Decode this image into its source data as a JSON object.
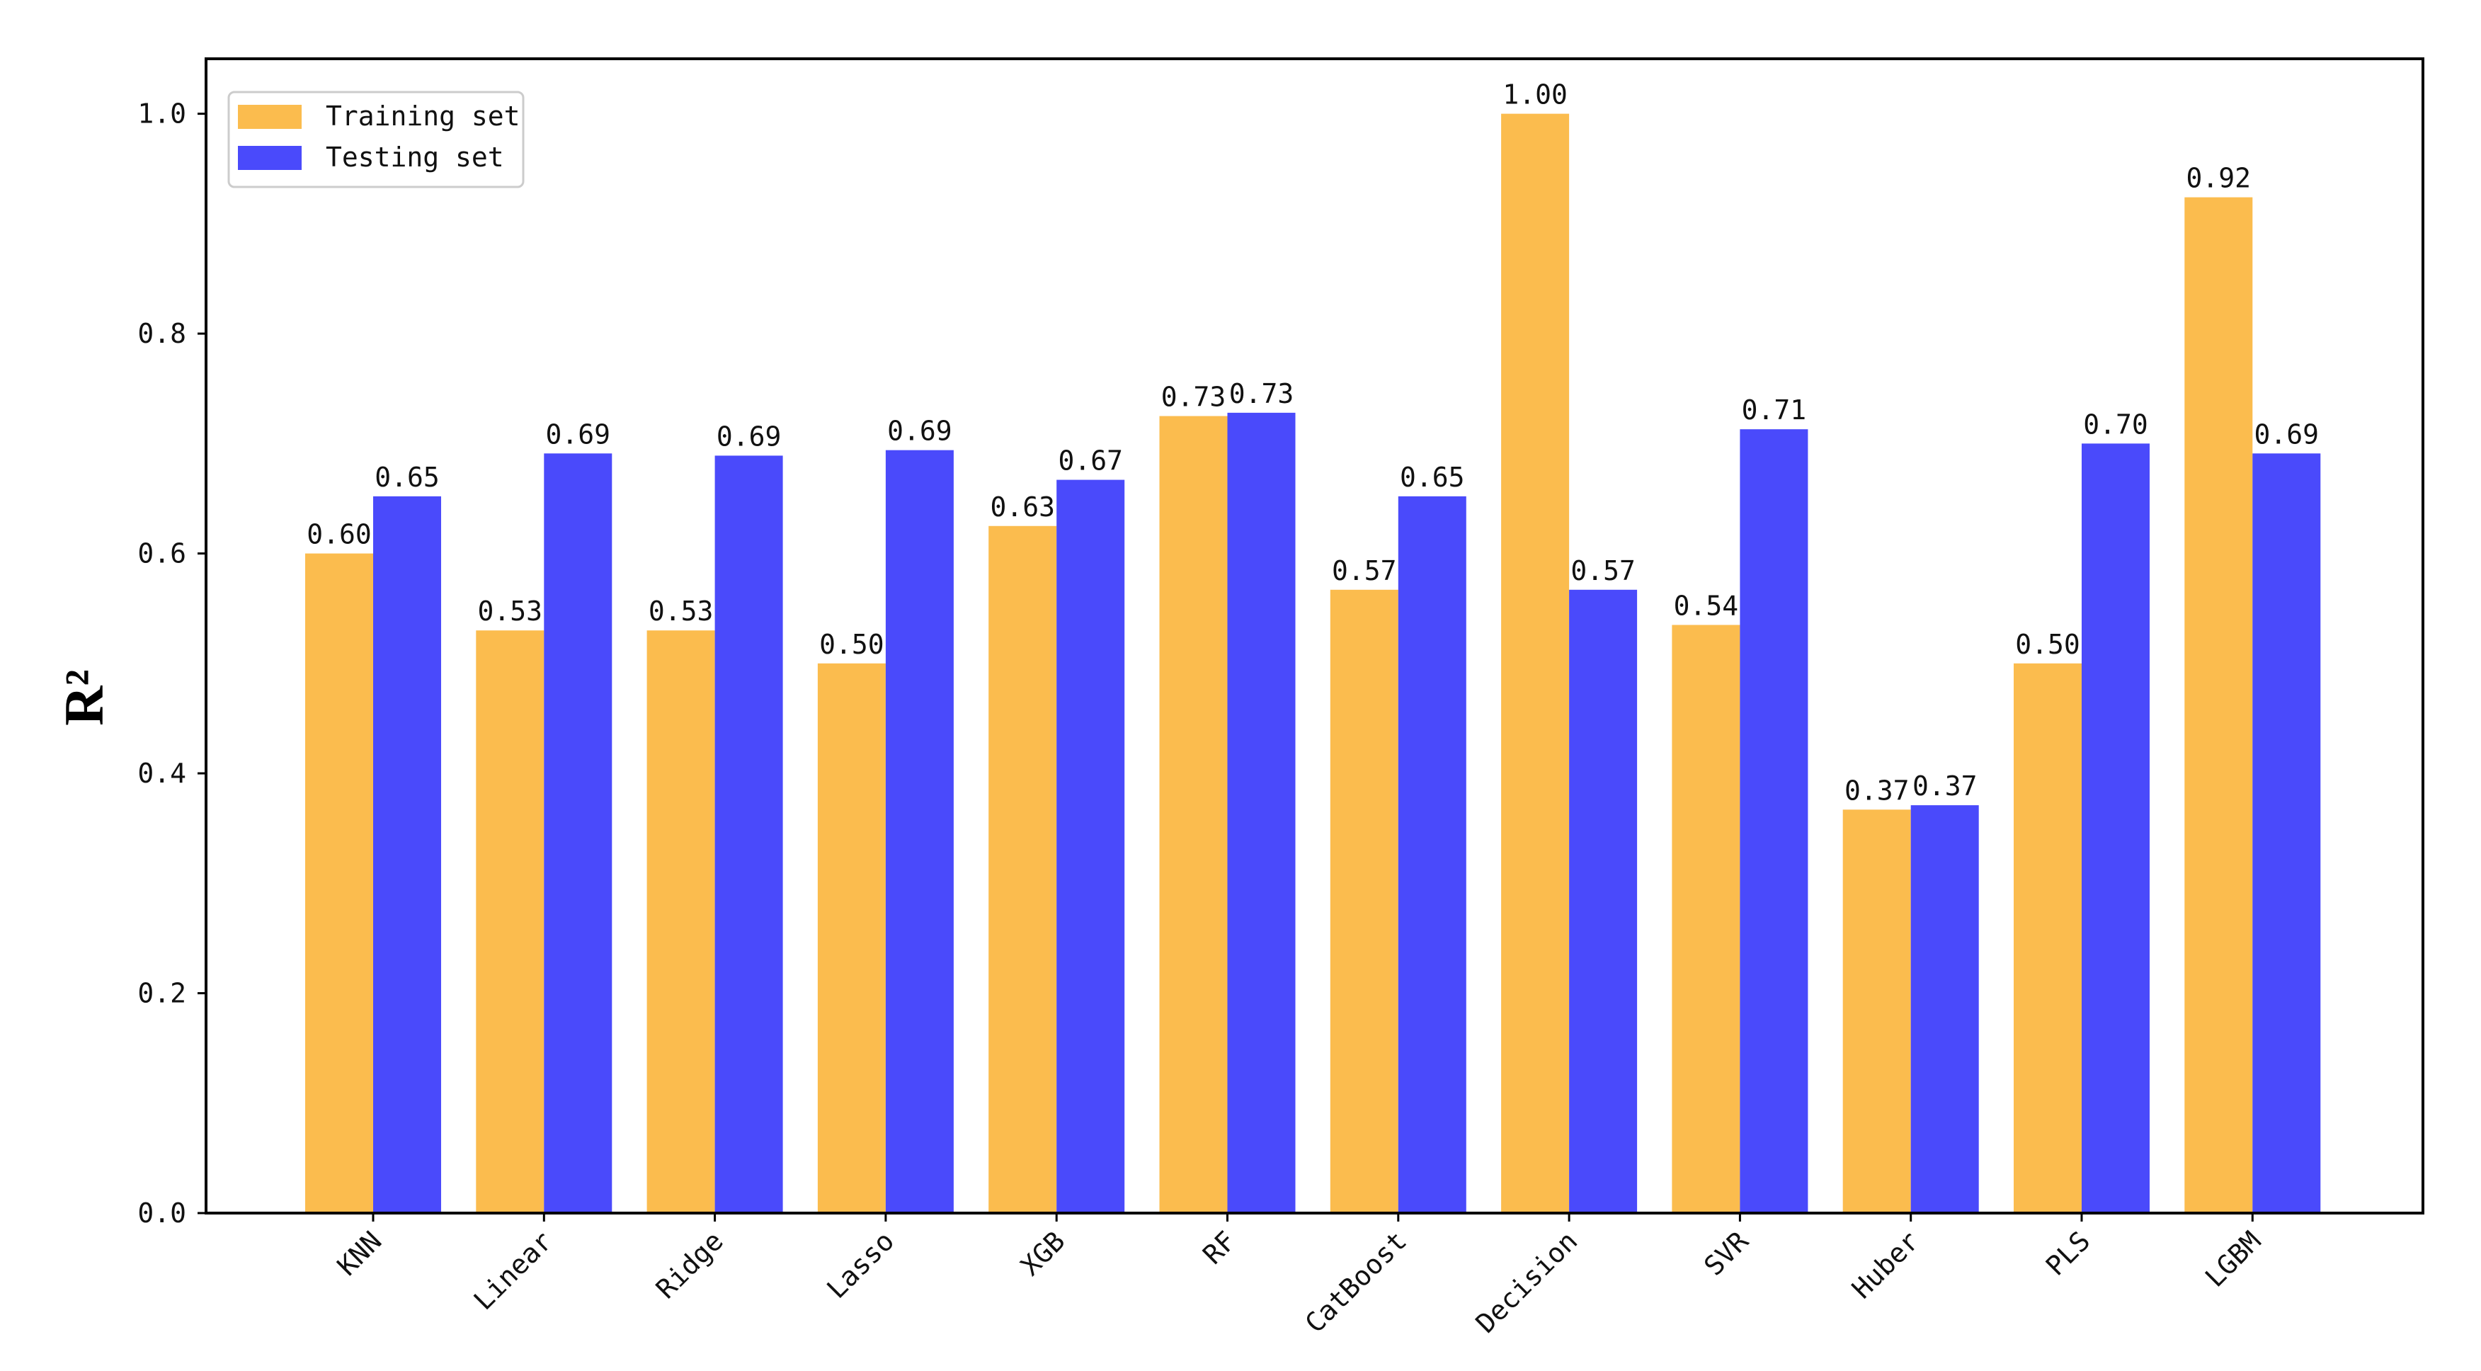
{
  "chart_data": {
    "type": "bar",
    "title": "",
    "xlabel": "",
    "ylabel": "R²",
    "ylim": [
      0,
      1.05
    ],
    "yticks": [
      0.0,
      0.2,
      0.4,
      0.6,
      0.8,
      1.0
    ],
    "ytick_labels": [
      "0.0",
      "0.2",
      "0.4",
      "0.6",
      "0.8",
      "1.0"
    ],
    "grid": false,
    "legend_position": "top-left",
    "categories": [
      "KNN",
      "Linear",
      "Ridge",
      "Lasso",
      "XGB",
      "RF",
      "CatBoost",
      "Decision",
      "SVR",
      "Huber",
      "PLS",
      "LGBM"
    ],
    "series": [
      {
        "name": "Training set",
        "color": "#FBBC4E",
        "values": [
          0.6,
          0.53,
          0.53,
          0.5,
          0.625,
          0.725,
          0.567,
          1.0,
          0.535,
          0.367,
          0.5,
          0.924
        ],
        "labels": [
          "0.60",
          "0.53",
          "0.53",
          "0.50",
          "0.63",
          "0.73",
          "0.57",
          "1.00",
          "0.54",
          "0.37",
          "0.50",
          "0.92"
        ]
      },
      {
        "name": "Testing set",
        "color": "#4A4AFB",
        "values": [
          0.652,
          0.691,
          0.689,
          0.694,
          0.667,
          0.728,
          0.652,
          0.567,
          0.713,
          0.371,
          0.7,
          0.691
        ],
        "labels": [
          "0.65",
          "0.69",
          "0.69",
          "0.69",
          "0.67",
          "0.73",
          "0.65",
          "0.57",
          "0.71",
          "0.37",
          "0.70",
          "0.69"
        ]
      }
    ]
  }
}
